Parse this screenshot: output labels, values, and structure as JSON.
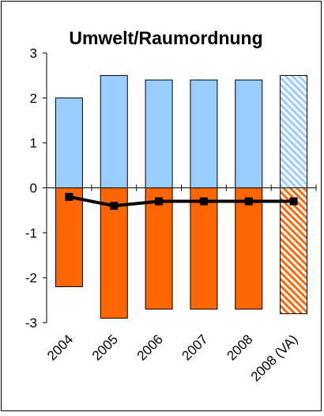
{
  "chart_data": {
    "type": "bar",
    "title": "Umwelt/Raumordnung",
    "xlabel": "",
    "ylabel": "",
    "ylim": [
      -3,
      3
    ],
    "yticks": [
      3,
      2,
      1,
      0,
      -1,
      -2,
      -3
    ],
    "categories": [
      "2004",
      "2005",
      "2006",
      "2007",
      "2008",
      "2008 (VA)"
    ],
    "hatched_categories": [
      "2008 (VA)"
    ],
    "series": [
      {
        "type": "bar",
        "color": "#99ccff",
        "values": [
          2.0,
          2.5,
          2.4,
          2.4,
          2.4,
          2.5
        ]
      },
      {
        "type": "bar",
        "color": "#ff6600",
        "values": [
          -2.2,
          -2.9,
          -2.7,
          -2.7,
          -2.7,
          -2.8
        ]
      },
      {
        "type": "line",
        "color": "#000000",
        "marker": "square",
        "values": [
          -0.2,
          -0.4,
          -0.3,
          -0.3,
          -0.3,
          -0.3
        ]
      }
    ],
    "grid": false,
    "legend": "none"
  }
}
